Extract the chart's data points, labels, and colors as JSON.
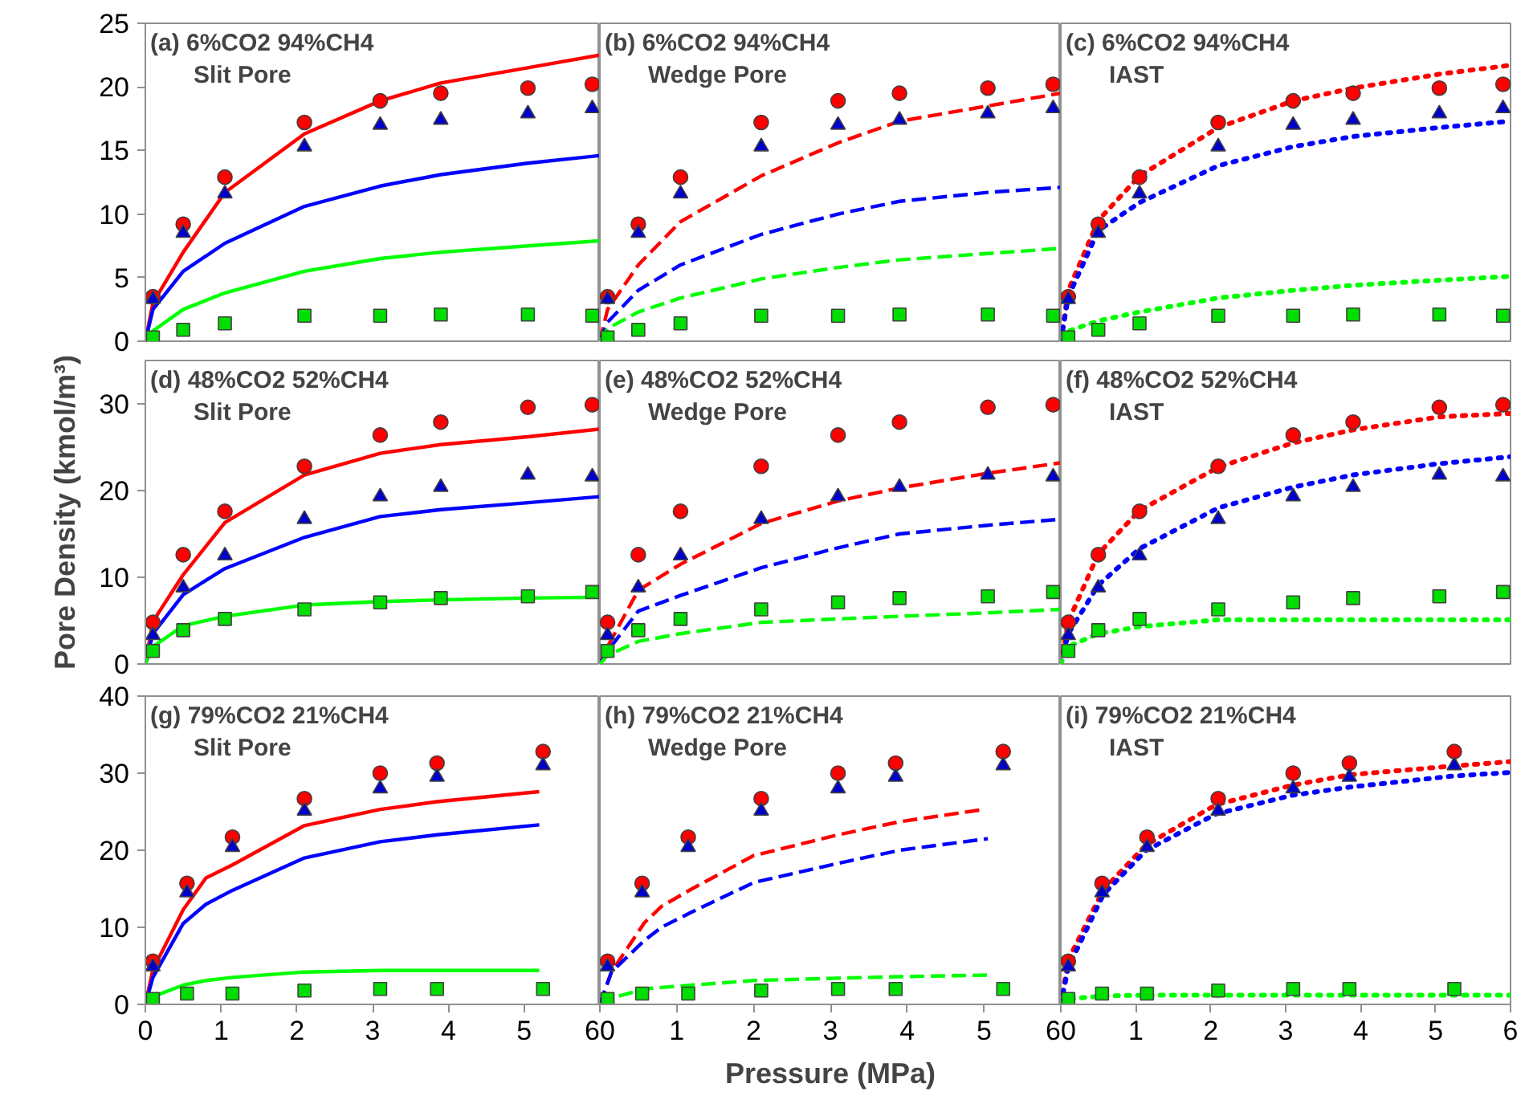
{
  "chart_data": [
    {
      "type": "line",
      "title": "(a) 6%CO2 94%CH4",
      "subtitle": "Slit Pore",
      "xlim": [
        0,
        6
      ],
      "xticks": [
        0,
        1,
        2,
        3,
        4,
        5,
        6
      ],
      "ylim": [
        0,
        25
      ],
      "yticks": [
        0,
        5,
        10,
        15,
        20,
        25
      ],
      "tick_labels": "y",
      "grid": false,
      "series": [
        {
          "type": "line",
          "line_style": "solid",
          "color": "#ff0000",
          "x": [
            0,
            0.1,
            0.5,
            1.05,
            2.1,
            3.1,
            3.9,
            5.05,
            6
          ],
          "values": [
            0,
            3,
            7,
            11.7,
            16.3,
            18.9,
            20.3,
            21.5,
            22.5
          ]
        },
        {
          "type": "line",
          "line_style": "solid",
          "color": "#0000ff",
          "x": [
            0,
            0.1,
            0.5,
            1.05,
            2.1,
            3.1,
            3.9,
            5.05,
            6
          ],
          "values": [
            0,
            2.5,
            5.5,
            7.7,
            10.6,
            12.2,
            13.1,
            14.0,
            14.6
          ]
        },
        {
          "type": "line",
          "line_style": "solid",
          "color": "#00ff00",
          "x": [
            0,
            0.1,
            0.5,
            1.05,
            2.1,
            3.1,
            3.9,
            5.05,
            6
          ],
          "values": [
            0,
            0.8,
            2.5,
            3.8,
            5.5,
            6.5,
            7.0,
            7.5,
            7.9
          ]
        },
        {
          "type": "scatter",
          "marker": "circle",
          "color": "#ff0000",
          "x": [
            0.1,
            0.5,
            1.05,
            2.1,
            3.1,
            3.9,
            5.05,
            5.9
          ],
          "values": [
            3.5,
            9.2,
            12.9,
            17.2,
            18.9,
            19.5,
            19.9,
            20.2
          ]
        },
        {
          "type": "scatter",
          "marker": "triangle",
          "color": "#0000cc",
          "x": [
            0.1,
            0.5,
            1.05,
            2.1,
            3.1,
            3.9,
            5.05,
            5.9
          ],
          "values": [
            3.3,
            8.5,
            11.6,
            15.3,
            17.0,
            17.4,
            17.9,
            18.3
          ]
        },
        {
          "type": "scatter",
          "marker": "square",
          "color": "#00dd00",
          "x": [
            0.1,
            0.5,
            1.05,
            2.1,
            3.1,
            3.9,
            5.05,
            5.9
          ],
          "values": [
            0.3,
            0.9,
            1.4,
            2.0,
            2.0,
            2.1,
            2.1,
            2.0
          ]
        }
      ]
    },
    {
      "type": "line",
      "title": "(b) 6%CO2 94%CH4",
      "subtitle": "Wedge Pore",
      "xlim": [
        0,
        6
      ],
      "xticks": [
        0,
        1,
        2,
        3,
        4,
        5,
        6
      ],
      "ylim": [
        0,
        25
      ],
      "yticks": [
        0,
        5,
        10,
        15,
        20,
        25
      ],
      "tick_labels": false,
      "grid": false,
      "series": [
        {
          "type": "line",
          "line_style": "dashed",
          "color": "#ff0000",
          "x": [
            0,
            0.1,
            0.5,
            1.05,
            2.1,
            3.1,
            3.9,
            5.05,
            6
          ],
          "values": [
            0,
            2.5,
            6,
            9.4,
            13,
            15.6,
            17.3,
            18.5,
            19.5
          ]
        },
        {
          "type": "line",
          "line_style": "dashed",
          "color": "#0000ff",
          "x": [
            0,
            0.1,
            0.5,
            1.05,
            2.1,
            3.1,
            3.9,
            5.05,
            6
          ],
          "values": [
            0,
            1.5,
            4,
            6,
            8.4,
            10,
            11,
            11.7,
            12.1
          ]
        },
        {
          "type": "line",
          "line_style": "dashed",
          "color": "#00ff00",
          "x": [
            0,
            0.1,
            0.5,
            1.05,
            2.1,
            3.1,
            3.9,
            5.05,
            6
          ],
          "values": [
            0,
            1,
            2.3,
            3.4,
            4.9,
            5.8,
            6.4,
            6.9,
            7.3
          ]
        },
        {
          "type": "scatter",
          "marker": "circle",
          "color": "#ff0000",
          "x": [
            0.1,
            0.5,
            1.05,
            2.1,
            3.1,
            3.9,
            5.05,
            5.9
          ],
          "values": [
            3.5,
            9.2,
            12.9,
            17.2,
            18.9,
            19.5,
            19.9,
            20.2
          ]
        },
        {
          "type": "scatter",
          "marker": "triangle",
          "color": "#0000cc",
          "x": [
            0.1,
            0.5,
            1.05,
            2.1,
            3.1,
            3.9,
            5.05,
            5.9
          ],
          "values": [
            3.3,
            8.5,
            11.6,
            15.3,
            17.0,
            17.4,
            17.9,
            18.3
          ]
        },
        {
          "type": "scatter",
          "marker": "square",
          "color": "#00dd00",
          "x": [
            0.1,
            0.5,
            1.05,
            2.1,
            3.1,
            3.9,
            5.05,
            5.9
          ],
          "values": [
            0.3,
            0.9,
            1.4,
            2.0,
            2.0,
            2.1,
            2.1,
            2.0
          ]
        }
      ]
    },
    {
      "type": "line",
      "title": "(c) 6%CO2 94%CH4",
      "subtitle": "IAST",
      "xlim": [
        0,
        6
      ],
      "xticks": [
        0,
        1,
        2,
        3,
        4,
        5,
        6
      ],
      "ylim": [
        0,
        25
      ],
      "yticks": [
        0,
        5,
        10,
        15,
        20,
        25
      ],
      "tick_labels": false,
      "grid": false,
      "series": [
        {
          "type": "line",
          "line_style": "dotted",
          "color": "#ff0000",
          "x": [
            0,
            0.1,
            0.5,
            1.05,
            2.1,
            3.1,
            3.9,
            5.05,
            6
          ],
          "values": [
            0,
            4,
            9.5,
            13,
            16.8,
            18.9,
            19.9,
            21,
            21.7
          ]
        },
        {
          "type": "line",
          "line_style": "dotted",
          "color": "#0000ff",
          "x": [
            0,
            0.1,
            0.5,
            1.05,
            2.1,
            3.1,
            3.9,
            5.05,
            6
          ],
          "values": [
            0,
            3.5,
            8.7,
            10.9,
            13.8,
            15.3,
            16.1,
            16.8,
            17.3
          ]
        },
        {
          "type": "line",
          "line_style": "dotted",
          "color": "#00ff00",
          "x": [
            0,
            0.1,
            0.5,
            1.05,
            2.1,
            3.1,
            3.9,
            5.05,
            6
          ],
          "values": [
            0.3,
            0.8,
            1.6,
            2.3,
            3.4,
            4.0,
            4.4,
            4.8,
            5.1
          ]
        },
        {
          "type": "scatter",
          "marker": "circle",
          "color": "#ff0000",
          "x": [
            0.1,
            0.5,
            1.05,
            2.1,
            3.1,
            3.9,
            5.05,
            5.9
          ],
          "values": [
            3.5,
            9.2,
            12.9,
            17.2,
            18.9,
            19.5,
            19.9,
            20.2
          ]
        },
        {
          "type": "scatter",
          "marker": "triangle",
          "color": "#0000cc",
          "x": [
            0.1,
            0.5,
            1.05,
            2.1,
            3.1,
            3.9,
            5.05,
            5.9
          ],
          "values": [
            3.3,
            8.5,
            11.6,
            15.3,
            17.0,
            17.4,
            17.9,
            18.3
          ]
        },
        {
          "type": "scatter",
          "marker": "square",
          "color": "#00dd00",
          "x": [
            0.1,
            0.5,
            1.05,
            2.1,
            3.1,
            3.9,
            5.05,
            5.9
          ],
          "values": [
            0.3,
            0.9,
            1.4,
            2.0,
            2.0,
            2.1,
            2.1,
            2.0
          ]
        }
      ]
    },
    {
      "type": "line",
      "title": "(d) 48%CO2 52%CH4",
      "subtitle": "Slit Pore",
      "ylabel": "Pore Density (kmol/m³)",
      "xlim": [
        0,
        6
      ],
      "xticks": [
        0,
        1,
        2,
        3,
        4,
        5,
        6
      ],
      "ylim": [
        0,
        35
      ],
      "yticks": [
        0,
        10,
        20,
        30
      ],
      "tick_labels": "y",
      "grid": false,
      "series": [
        {
          "type": "line",
          "line_style": "solid",
          "color": "#ff0000",
          "x": [
            0,
            0.1,
            0.5,
            1.05,
            2.1,
            3.1,
            3.9,
            5.05,
            6
          ],
          "values": [
            0,
            4.9,
            10.3,
            16.3,
            21.8,
            24.3,
            25.3,
            26.2,
            27.1
          ]
        },
        {
          "type": "line",
          "line_style": "solid",
          "color": "#0000ff",
          "x": [
            0,
            0.1,
            0.5,
            1.05,
            2.1,
            3.1,
            3.9,
            5.05,
            6
          ],
          "values": [
            0,
            3.5,
            8,
            11,
            14.6,
            17,
            17.8,
            18.6,
            19.3
          ]
        },
        {
          "type": "line",
          "line_style": "solid",
          "color": "#00ff00",
          "x": [
            0,
            0.1,
            0.5,
            1.05,
            2.1,
            3.1,
            3.9,
            5.05,
            6
          ],
          "values": [
            0,
            2,
            4.4,
            5.5,
            6.8,
            7.2,
            7.4,
            7.6,
            7.7
          ]
        },
        {
          "type": "scatter",
          "marker": "circle",
          "color": "#ff0000",
          "x": [
            0.1,
            0.5,
            1.05,
            2.1,
            3.1,
            3.9,
            5.05,
            5.9
          ],
          "values": [
            4.8,
            12.6,
            17.6,
            22.8,
            26.4,
            27.9,
            29.6,
            29.9
          ]
        },
        {
          "type": "scatter",
          "marker": "triangle",
          "color": "#0000cc",
          "x": [
            0.1,
            0.5,
            1.05,
            2.1,
            3.1,
            3.9,
            5.05,
            5.9
          ],
          "values": [
            3.3,
            8.8,
            12.5,
            16.7,
            19.3,
            20.4,
            21.8,
            21.6
          ]
        },
        {
          "type": "scatter",
          "marker": "square",
          "color": "#00dd00",
          "x": [
            0.1,
            0.5,
            1.05,
            2.1,
            3.1,
            3.9,
            5.05,
            5.9
          ],
          "values": [
            1.5,
            3.9,
            5.2,
            6.3,
            7.1,
            7.6,
            7.8,
            8.3
          ]
        }
      ]
    },
    {
      "type": "line",
      "title": "(e) 48%CO2 52%CH4",
      "subtitle": "Wedge Pore",
      "xlim": [
        0,
        6
      ],
      "xticks": [
        0,
        1,
        2,
        3,
        4,
        5,
        6
      ],
      "ylim": [
        0,
        35
      ],
      "yticks": [
        0,
        10,
        20,
        30
      ],
      "tick_labels": false,
      "grid": false,
      "series": [
        {
          "type": "line",
          "line_style": "dashed",
          "color": "#ff0000",
          "x": [
            0,
            0.1,
            0.5,
            1.05,
            2.1,
            3.1,
            3.9,
            5.05,
            6
          ],
          "values": [
            0,
            2,
            8.5,
            11.5,
            16.2,
            18.8,
            20.3,
            22,
            23.2
          ]
        },
        {
          "type": "line",
          "line_style": "dashed",
          "color": "#0000ff",
          "x": [
            0,
            0.1,
            0.5,
            1.05,
            2.1,
            3.1,
            3.9,
            5.05,
            6
          ],
          "values": [
            0,
            1.5,
            6.1,
            7.9,
            11.1,
            13.4,
            15,
            16,
            16.7
          ]
        },
        {
          "type": "line",
          "line_style": "dashed",
          "color": "#00ff00",
          "x": [
            0,
            0.1,
            0.5,
            1.05,
            2.1,
            3.1,
            3.9,
            5.05,
            6
          ],
          "values": [
            0,
            1,
            2.6,
            3.5,
            4.8,
            5.2,
            5.5,
            5.9,
            6.3
          ]
        },
        {
          "type": "scatter",
          "marker": "circle",
          "color": "#ff0000",
          "x": [
            0.1,
            0.5,
            1.05,
            2.1,
            3.1,
            3.9,
            5.05,
            5.9
          ],
          "values": [
            4.8,
            12.6,
            17.6,
            22.8,
            26.4,
            27.9,
            29.6,
            29.9
          ]
        },
        {
          "type": "scatter",
          "marker": "triangle",
          "color": "#0000cc",
          "x": [
            0.1,
            0.5,
            1.05,
            2.1,
            3.1,
            3.9,
            5.05,
            5.9
          ],
          "values": [
            3.3,
            8.8,
            12.5,
            16.7,
            19.3,
            20.4,
            21.8,
            21.6
          ]
        },
        {
          "type": "scatter",
          "marker": "square",
          "color": "#00dd00",
          "x": [
            0.1,
            0.5,
            1.05,
            2.1,
            3.1,
            3.9,
            5.05,
            5.9
          ],
          "values": [
            1.5,
            3.9,
            5.2,
            6.3,
            7.1,
            7.6,
            7.8,
            8.3
          ]
        }
      ]
    },
    {
      "type": "line",
      "title": "(f) 48%CO2 52%CH4",
      "subtitle": "IAST",
      "xlim": [
        0,
        6
      ],
      "xticks": [
        0,
        1,
        2,
        3,
        4,
        5,
        6
      ],
      "ylim": [
        0,
        35
      ],
      "yticks": [
        0,
        10,
        20,
        30
      ],
      "tick_labels": false,
      "grid": false,
      "series": [
        {
          "type": "line",
          "line_style": "dotted",
          "color": "#ff0000",
          "x": [
            0,
            0.1,
            0.5,
            1.05,
            2.1,
            3.1,
            3.9,
            5.05,
            6
          ],
          "values": [
            0,
            4.9,
            12.7,
            17.7,
            22.7,
            25.5,
            27,
            28.5,
            28.9
          ]
        },
        {
          "type": "line",
          "line_style": "dotted",
          "color": "#0000ff",
          "x": [
            0,
            0.1,
            0.5,
            1.05,
            2.1,
            3.1,
            3.9,
            5.05,
            6
          ],
          "values": [
            0,
            3.5,
            9.1,
            13.3,
            18,
            20.4,
            21.8,
            23.1,
            23.9
          ]
        },
        {
          "type": "line",
          "line_style": "dotted",
          "color": "#00ff00",
          "x": [
            0,
            0.1,
            0.5,
            1.05,
            2.1,
            3.1,
            3.9,
            5.05,
            6
          ],
          "values": [
            0,
            2,
            3.5,
            4.3,
            5.1,
            5.1,
            5.1,
            5.1,
            5.1
          ]
        },
        {
          "type": "scatter",
          "marker": "circle",
          "color": "#ff0000",
          "x": [
            0.1,
            0.5,
            1.05,
            2.1,
            3.1,
            3.9,
            5.05,
            5.9
          ],
          "values": [
            4.8,
            12.6,
            17.6,
            22.8,
            26.4,
            27.9,
            29.6,
            29.9
          ]
        },
        {
          "type": "scatter",
          "marker": "triangle",
          "color": "#0000cc",
          "x": [
            0.1,
            0.5,
            1.05,
            2.1,
            3.1,
            3.9,
            5.05,
            5.9
          ],
          "values": [
            3.3,
            8.8,
            12.5,
            16.7,
            19.3,
            20.4,
            21.8,
            21.6
          ]
        },
        {
          "type": "scatter",
          "marker": "square",
          "color": "#00dd00",
          "x": [
            0.1,
            0.5,
            1.05,
            2.1,
            3.1,
            3.9,
            5.05,
            5.9
          ],
          "values": [
            1.5,
            3.9,
            5.2,
            6.3,
            7.1,
            7.6,
            7.8,
            8.3
          ]
        }
      ]
    },
    {
      "type": "line",
      "title": "(g) 79%CO2 21%CH4",
      "subtitle": "Slit Pore",
      "xlim": [
        0,
        6
      ],
      "xticks": [
        0,
        1,
        2,
        3,
        4,
        5,
        6
      ],
      "ylim": [
        0,
        40
      ],
      "yticks": [
        0,
        10,
        20,
        30,
        40
      ],
      "grid": false,
      "series": [
        {
          "type": "line",
          "line_style": "solid",
          "color": "#ff0000",
          "x": [
            0,
            0.1,
            0.5,
            0.8,
            1.15,
            2.1,
            3.1,
            3.85,
            5.2
          ],
          "values": [
            0,
            4.5,
            12.3,
            16.4,
            18.1,
            23.2,
            25.3,
            26.3,
            27.6
          ]
        },
        {
          "type": "line",
          "line_style": "solid",
          "color": "#0000ff",
          "x": [
            0,
            0.1,
            0.5,
            0.8,
            1.15,
            2.1,
            3.1,
            3.85,
            5.2
          ],
          "values": [
            0,
            3.5,
            10.5,
            13,
            14.8,
            19,
            21.1,
            22,
            23.3
          ]
        },
        {
          "type": "line",
          "line_style": "solid",
          "color": "#00ff00",
          "x": [
            0,
            0.1,
            0.5,
            0.8,
            1.15,
            2.1,
            3.1,
            3.85,
            5.2
          ],
          "values": [
            0,
            1,
            2.5,
            3.1,
            3.5,
            4.2,
            4.4,
            4.4,
            4.4
          ]
        },
        {
          "type": "scatter",
          "marker": "circle",
          "color": "#ff0000",
          "x": [
            0.1,
            0.55,
            1.15,
            2.1,
            3.1,
            3.85,
            5.25
          ],
          "values": [
            5.6,
            15.7,
            21.7,
            26.7,
            30,
            31.3,
            32.8
          ]
        },
        {
          "type": "scatter",
          "marker": "triangle",
          "color": "#0000cc",
          "x": [
            0.1,
            0.55,
            1.15,
            2.1,
            3.1,
            3.85,
            5.25
          ],
          "values": [
            4.9,
            14.5,
            20.4,
            25.1,
            28,
            29.5,
            31
          ]
        },
        {
          "type": "scatter",
          "marker": "square",
          "color": "#00dd00",
          "x": [
            0.1,
            0.55,
            1.15,
            2.1,
            3.1,
            3.85,
            5.25
          ],
          "values": [
            0.7,
            1.4,
            1.4,
            1.8,
            2,
            2,
            2
          ]
        }
      ]
    },
    {
      "type": "line",
      "title": "(h) 79%CO2 21%CH4",
      "subtitle": "Wedge Pore",
      "xlabel": "Pressure (MPa)",
      "xlim": [
        0,
        6
      ],
      "xticks": [
        0,
        1,
        2,
        3,
        4,
        5,
        6
      ],
      "ylim": [
        0,
        40
      ],
      "yticks": [
        0,
        10,
        20,
        30,
        40
      ],
      "tick_labels": "x",
      "grid": false,
      "series": [
        {
          "type": "line",
          "line_style": "dashed",
          "color": "#ff0000",
          "x": [
            0,
            0.15,
            0.58,
            0.8,
            1.2,
            2.0,
            3.1,
            3.9,
            5.0
          ],
          "values": [
            0,
            4.2,
            10.6,
            12.7,
            15,
            19.3,
            22,
            23.7,
            25.3
          ]
        },
        {
          "type": "line",
          "line_style": "dashed",
          "color": "#0000ff",
          "x": [
            0,
            0.15,
            0.58,
            0.8,
            1.2,
            2.0,
            3.1,
            3.9,
            5.05
          ],
          "values": [
            0,
            4.2,
            8.3,
            10,
            12,
            15.8,
            18.3,
            20,
            21.5
          ]
        },
        {
          "type": "line",
          "line_style": "dashed",
          "color": "#00ff00",
          "x": [
            0,
            0.15,
            0.58,
            0.8,
            1.2,
            2.0,
            3.1,
            3.9,
            5.05
          ],
          "values": [
            0,
            0.8,
            2,
            2.2,
            2.5,
            3.1,
            3.4,
            3.6,
            3.8
          ]
        },
        {
          "type": "scatter",
          "marker": "circle",
          "color": "#ff0000",
          "x": [
            0.1,
            0.55,
            1.15,
            2.1,
            3.1,
            3.85,
            5.25
          ],
          "values": [
            5.6,
            15.7,
            21.7,
            26.7,
            30,
            31.3,
            32.8
          ]
        },
        {
          "type": "scatter",
          "marker": "triangle",
          "color": "#0000cc",
          "x": [
            0.1,
            0.55,
            1.15,
            2.1,
            3.1,
            3.85,
            5.25
          ],
          "values": [
            4.9,
            14.5,
            20.4,
            25.1,
            28,
            29.5,
            31
          ]
        },
        {
          "type": "scatter",
          "marker": "square",
          "color": "#00dd00",
          "x": [
            0.1,
            0.55,
            1.15,
            2.1,
            3.1,
            3.85,
            5.25
          ],
          "values": [
            0.7,
            1.4,
            1.4,
            1.8,
            2,
            2,
            2
          ]
        }
      ]
    },
    {
      "type": "line",
      "title": "(i) 79%CO2 21%CH4",
      "subtitle": "IAST",
      "xlim": [
        0,
        6
      ],
      "xticks": [
        0,
        1,
        2,
        3,
        4,
        5,
        6
      ],
      "ylim": [
        0,
        40
      ],
      "yticks": [
        0,
        10,
        20,
        30,
        40
      ],
      "tick_labels": "x",
      "grid": false,
      "series": [
        {
          "type": "line",
          "line_style": "dotted",
          "color": "#ff0000",
          "x": [
            0,
            0.1,
            0.57,
            1.14,
            2.07,
            3.07,
            3.86,
            5.2,
            6
          ],
          "values": [
            0,
            5.8,
            14.9,
            20.7,
            25.9,
            28.4,
            29.8,
            30.9,
            31.5
          ]
        },
        {
          "type": "line",
          "line_style": "dotted",
          "color": "#0000ff",
          "x": [
            0,
            0.1,
            0.57,
            1.14,
            2.07,
            3.07,
            3.86,
            5.2,
            6
          ],
          "values": [
            0,
            4.8,
            14.3,
            20,
            24.7,
            27.1,
            28.2,
            29.6,
            30.1
          ]
        },
        {
          "type": "line",
          "line_style": "dotted",
          "color": "#00ff00",
          "x": [
            0,
            0.1,
            0.57,
            1.14,
            2.07,
            3.07,
            3.86,
            5.2,
            6
          ],
          "values": [
            0,
            0.7,
            1.1,
            1.2,
            1.2,
            1.2,
            1.2,
            1.2,
            1.2
          ]
        },
        {
          "type": "scatter",
          "marker": "circle",
          "color": "#ff0000",
          "x": [
            0.1,
            0.55,
            1.15,
            2.1,
            3.1,
            3.85,
            5.25
          ],
          "values": [
            5.6,
            15.7,
            21.7,
            26.7,
            30,
            31.3,
            32.8
          ]
        },
        {
          "type": "scatter",
          "marker": "triangle",
          "color": "#0000cc",
          "x": [
            0.1,
            0.55,
            1.15,
            2.1,
            3.1,
            3.85,
            5.25
          ],
          "values": [
            4.9,
            14.5,
            20.4,
            25.1,
            28,
            29.5,
            31
          ]
        },
        {
          "type": "scatter",
          "marker": "square",
          "color": "#00dd00",
          "x": [
            0.1,
            0.55,
            1.15,
            2.1,
            3.1,
            3.85,
            5.25
          ],
          "values": [
            0.7,
            1.4,
            1.4,
            1.8,
            2,
            2,
            2
          ]
        }
      ]
    }
  ]
}
